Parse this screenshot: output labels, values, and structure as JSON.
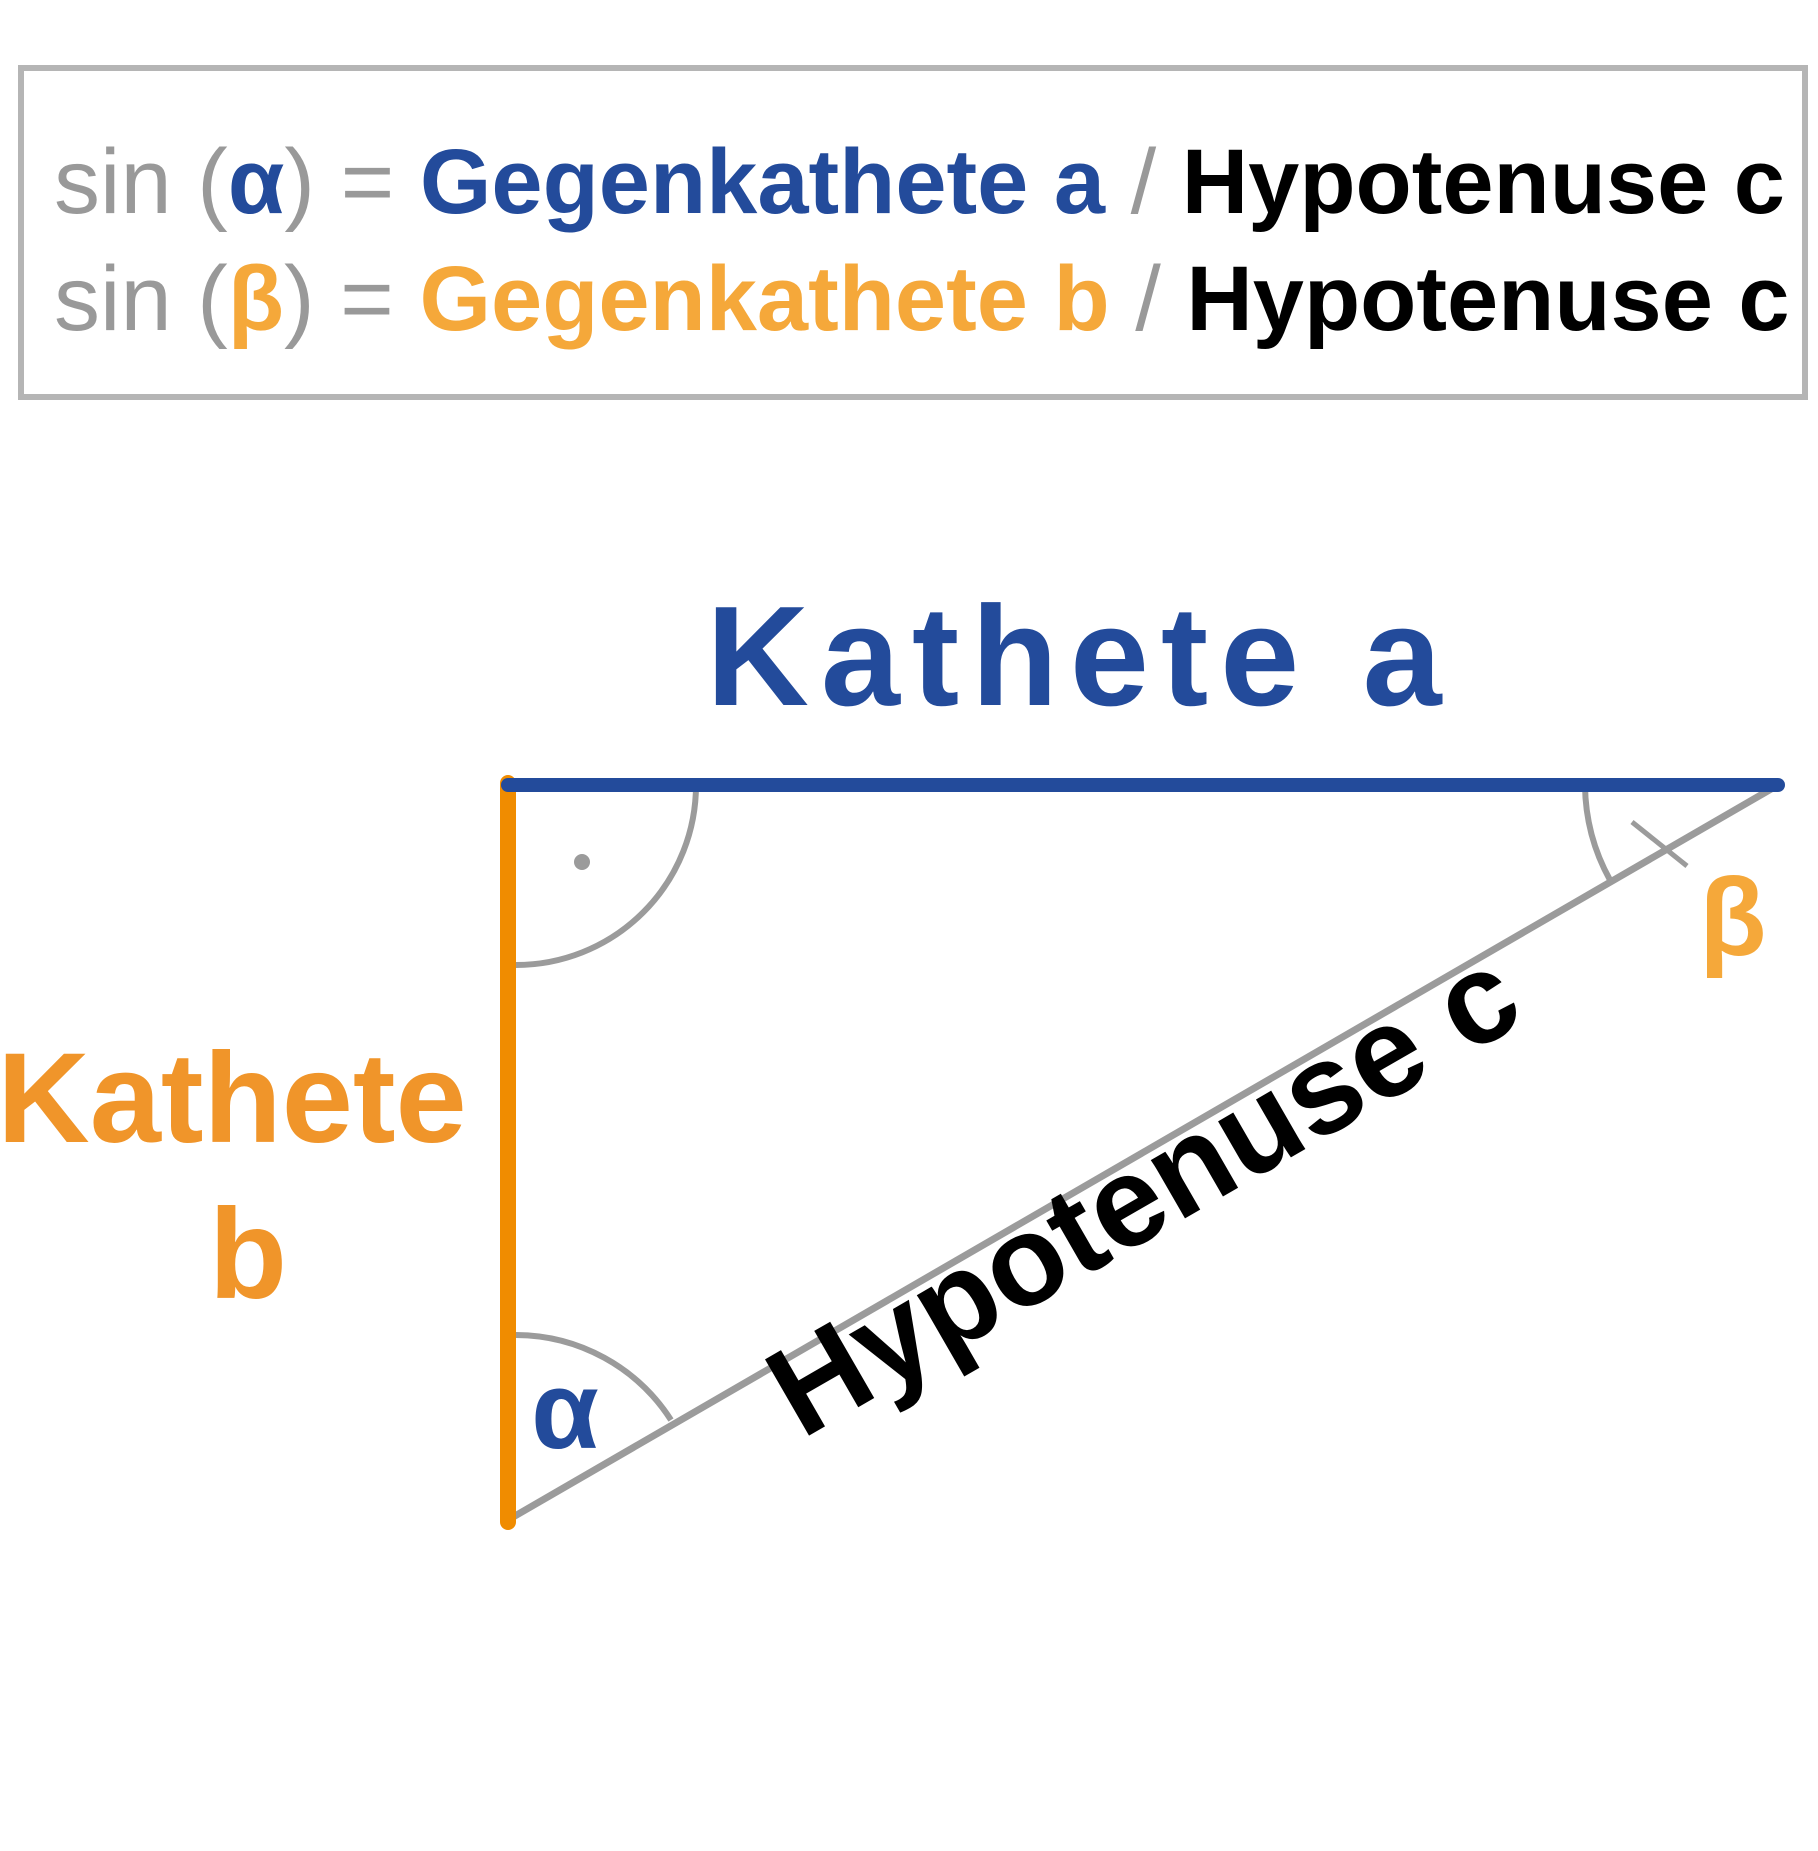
{
  "formulas": [
    {
      "fn": "sin",
      "open_paren": "(",
      "angle": "α",
      "close_paren": ")",
      "equals": "=",
      "numerator": "Gegenkathete a",
      "slash": "/",
      "denominator": "Hypotenuse c"
    },
    {
      "fn": "sin",
      "open_paren": "(",
      "angle": "β",
      "close_paren": ")",
      "equals": "=",
      "numerator": "Gegenkathete b",
      "slash": "/",
      "denominator": "Hypotenuse c"
    }
  ],
  "triangle": {
    "side_a_label": "Kathete a",
    "side_b_label_line1": "Kathete",
    "side_b_label_line2": "b",
    "hypotenuse_label": "Hypotenuse c",
    "angle_alpha_label": "α",
    "angle_beta_label": "β"
  },
  "colors": {
    "side_a": "#234b9b",
    "side_b": "#f08c00",
    "side_b_label": "#f0952a",
    "beta_text": "#f5a83a",
    "hypotenuse": "#9b9b9b",
    "arc": "#9b9b9b",
    "text_black": "#000000",
    "box_border": "#b5b5b5",
    "formula_gray": "#999999"
  }
}
